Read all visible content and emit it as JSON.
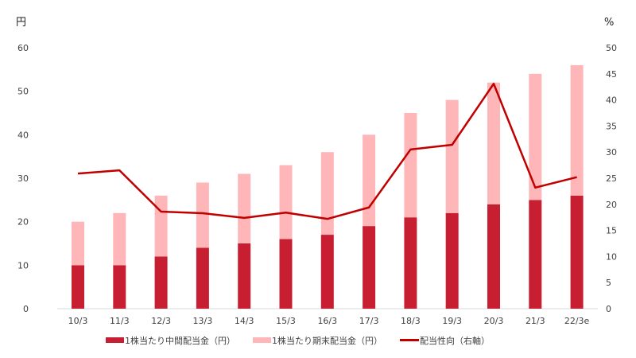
{
  "chart_data": {
    "type": "bar",
    "stacked": true,
    "categories": [
      "10/3",
      "11/3",
      "12/3",
      "13/3",
      "14/3",
      "15/3",
      "16/3",
      "17/3",
      "18/3",
      "19/3",
      "20/3",
      "21/3",
      "22/3e"
    ],
    "series": [
      {
        "name": "1株当たり中間配当金（円）",
        "type": "bar",
        "axis": "left",
        "color": "#c81e32",
        "values": [
          10,
          10,
          12,
          14,
          15,
          16,
          17,
          19,
          21,
          22,
          24,
          25,
          26
        ]
      },
      {
        "name": "1株当たり期末配当金（円）",
        "type": "bar",
        "axis": "left",
        "color": "#ffb6b8",
        "values": [
          10,
          12,
          14,
          15,
          16,
          17,
          19,
          21,
          24,
          26,
          28,
          29,
          30
        ]
      },
      {
        "name": "配当性向（右軸）",
        "type": "line",
        "axis": "right",
        "color": "#c00000",
        "values": [
          25.9,
          26.5,
          18.6,
          18.3,
          17.4,
          18.4,
          17.2,
          19.4,
          30.5,
          31.4,
          43.1,
          23.2,
          25.2
        ]
      }
    ],
    "left_axis": {
      "label": "円",
      "ylim": [
        0,
        60
      ],
      "ticks": [
        0,
        10,
        20,
        30,
        40,
        50,
        60
      ]
    },
    "right_axis": {
      "label": "%",
      "ylim": [
        0,
        50
      ],
      "ticks": [
        0,
        5,
        10,
        15,
        20,
        25,
        30,
        35,
        40,
        45,
        50
      ]
    },
    "grid": false,
    "legend": "bottom"
  }
}
